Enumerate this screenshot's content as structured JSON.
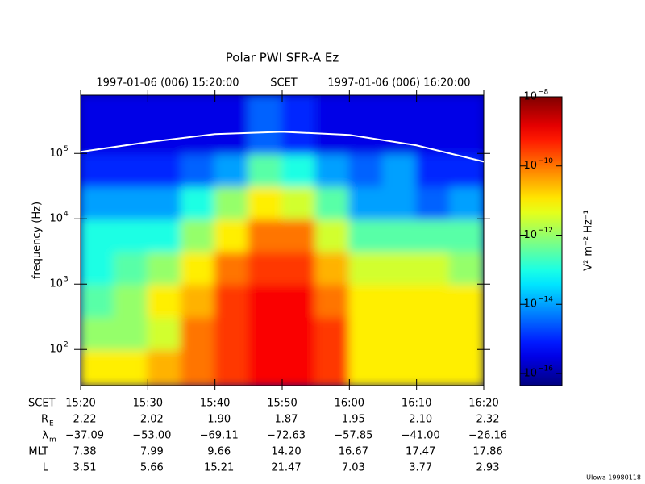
{
  "chart_data": {
    "type": "spectrogram",
    "title": "Polar PWI SFR-A Ez",
    "header": {
      "start": "1997-01-06 (006) 15:20:00",
      "middle": "SCET",
      "end": "1997-01-06 (006) 16:20:00"
    },
    "ylabel": "frequency (Hz)",
    "log_y": true,
    "ylim": [
      28,
      780000
    ],
    "yticks": [
      {
        "value": 100,
        "label": "10",
        "exponent": "2"
      },
      {
        "value": 1000,
        "label": "10",
        "exponent": "3"
      },
      {
        "value": 10000,
        "label": "10",
        "exponent": "4"
      },
      {
        "value": 100000,
        "label": "10",
        "exponent": "5"
      }
    ],
    "heatmap": {
      "log_freq_edges": [
        1.44,
        2,
        2.5,
        3,
        3.5,
        4,
        4.5,
        5,
        5.89
      ],
      "rows": [
        [
          -11,
          -11,
          -10.5,
          -10,
          -9.5,
          -9,
          -9,
          -9.5,
          -11,
          -11,
          -11,
          -11
        ],
        [
          -12,
          -12,
          -11.5,
          -10,
          -9.5,
          -9,
          -9,
          -9.5,
          -11,
          -11,
          -11,
          -11
        ],
        [
          -12.5,
          -12,
          -11,
          -10.5,
          -9.5,
          -9,
          -9,
          -10,
          -11,
          -11,
          -11,
          -11
        ],
        [
          -13,
          -12.5,
          -12,
          -11,
          -10,
          -9.5,
          -9.5,
          -10.5,
          -11.5,
          -11.5,
          -11.5,
          -12
        ],
        [
          -13,
          -13,
          -13,
          -12,
          -11,
          -10,
          -10,
          -11.5,
          -12.5,
          -12.5,
          -12.5,
          -12.5
        ],
        [
          -14,
          -14,
          -14,
          -13,
          -12,
          -11,
          -11.5,
          -12.5,
          -14,
          -14,
          -14.5,
          -14
        ],
        [
          -15,
          -15,
          -15,
          -14.5,
          -14,
          -12.5,
          -13,
          -14,
          -14.5,
          -14,
          -15,
          -15
        ],
        [
          -15.5,
          -15.5,
          -15.5,
          -15.5,
          -15.5,
          -14.5,
          -15,
          -15.5,
          -15.5,
          -15.5,
          -15.5,
          -15.5
        ]
      ]
    },
    "curve": {
      "color": "#ffffff",
      "values": [
        106000,
        149000,
        198000,
        215000,
        192000,
        133000,
        75000
      ]
    },
    "colorbar": {
      "label": "V² m⁻² Hz⁻¹",
      "clim": [
        -16.35,
        -8
      ],
      "ticks": [
        {
          "value": -8,
          "label": "10",
          "exponent": "−8"
        },
        {
          "value": -10,
          "label": "10",
          "exponent": "−10"
        },
        {
          "value": -12,
          "label": "10",
          "exponent": "−12"
        },
        {
          "value": -14,
          "label": "10",
          "exponent": "−14"
        },
        {
          "value": -16,
          "label": "10",
          "exponent": "−16"
        }
      ]
    },
    "ephemeris": [
      {
        "label": "SCET",
        "values": [
          "15:20",
          "15:30",
          "15:40",
          "15:50",
          "16:00",
          "16:10",
          "16:20"
        ]
      },
      {
        "label": "R",
        "sub": "E",
        "values": [
          "2.22",
          "2.02",
          "1.90",
          "1.87",
          "1.95",
          "2.10",
          "2.32"
        ]
      },
      {
        "label": "λ",
        "sub": "m",
        "values": [
          "−37.09",
          "−53.00",
          "−69.11",
          "−72.63",
          "−57.85",
          "−41.00",
          "−26.16"
        ]
      },
      {
        "label": "MLT",
        "values": [
          "7.38",
          "7.99",
          "9.66",
          "14.20",
          "16.67",
          "17.47",
          "17.86"
        ]
      },
      {
        "label": "L",
        "values": [
          "3.51",
          "5.66",
          "15.21",
          "21.47",
          "7.03",
          "3.77",
          "2.93"
        ]
      }
    ],
    "footer": "UIowa 19980118"
  }
}
